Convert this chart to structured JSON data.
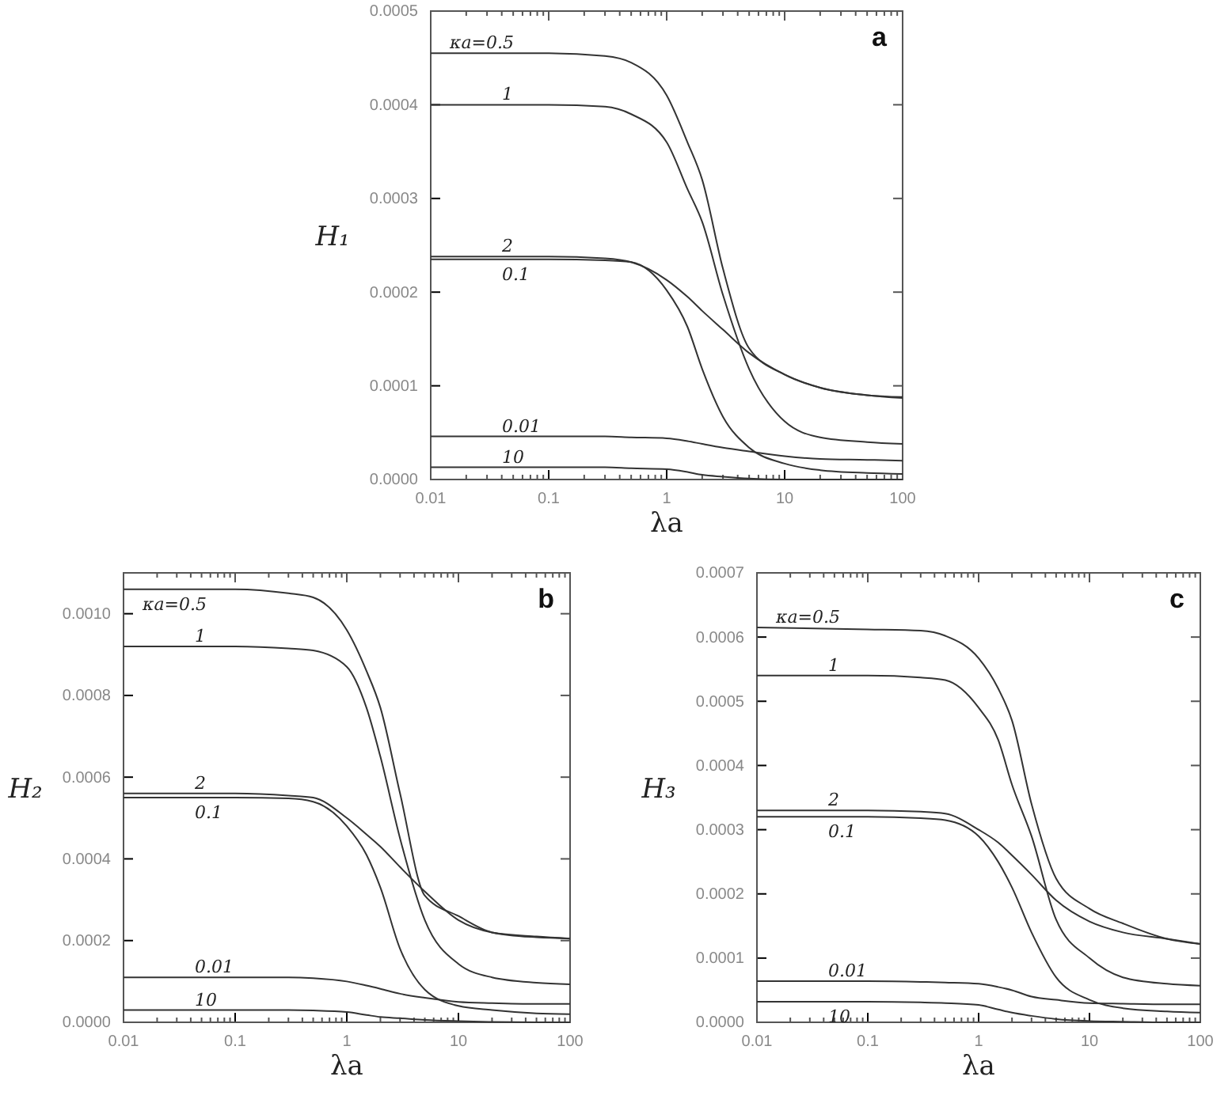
{
  "chart_data": [
    {
      "type": "line",
      "title": "a",
      "xlabel": "λa",
      "ylabel": "H₁",
      "log": "x",
      "xlim": [
        0.01,
        100
      ],
      "xticks": [
        0.01,
        0.1,
        1,
        10,
        100
      ],
      "ylim": [
        0,
        0.0005
      ],
      "yticks": [
        {
          "value": 0,
          "label": "0.0000"
        },
        {
          "value": 0.0001,
          "label": "0.0001"
        },
        {
          "value": 0.0002,
          "label": "0.0002"
        },
        {
          "value": 0.0003,
          "label": "0.0003"
        },
        {
          "value": 0.0004,
          "label": "0.0004"
        },
        {
          "value": 0.0005,
          "label": "0.0005"
        }
      ],
      "x": [
        0.01,
        0.1,
        0.3,
        0.5,
        1,
        1.5,
        2,
        3,
        5,
        10,
        20,
        50,
        100
      ],
      "series": [
        {
          "name": "κa=0.5",
          "color": "#333333",
          "values": [
            0.000455,
            0.000455,
            0.000452,
            0.000445,
            0.00041,
            0.00036,
            0.00032,
            0.000225,
            0.00014,
            0.000112,
            9.8e-05,
            9e-05,
            8.8e-05
          ]
        },
        {
          "name": "1",
          "color": "#333333",
          "values": [
            0.0004,
            0.0004,
            0.000398,
            0.00039,
            0.00036,
            0.00031,
            0.000275,
            0.000197,
            0.000118,
            6.2e-05,
            4.5e-05,
            4e-05,
            3.8e-05
          ]
        },
        {
          "name": "2",
          "color": "#333333",
          "values": [
            0.000238,
            0.000238,
            0.000236,
            0.000232,
            0.000213,
            0.000195,
            0.00018,
            0.00016,
            0.000135,
            0.000112,
            9.8e-05,
            9e-05,
            8.7e-05
          ]
        },
        {
          "name": "0.1",
          "color": "#333333",
          "values": [
            0.000235,
            0.000235,
            0.000234,
            0.000232,
            0.000202,
            0.000163,
            0.000118,
            6.7e-05,
            3.4e-05,
            1.7e-05,
            1e-05,
            7e-06,
            6e-06
          ]
        },
        {
          "name": "0.01",
          "color": "#333333",
          "values": [
            4.6e-05,
            4.6e-05,
            4.6e-05,
            4.5e-05,
            4.4e-05,
            4.1e-05,
            3.8e-05,
            3.4e-05,
            3e-05,
            2.5e-05,
            2.2e-05,
            2.1e-05,
            2e-05
          ]
        },
        {
          "name": "10",
          "color": "#333333",
          "values": [
            1.3e-05,
            1.3e-05,
            1.3e-05,
            1.2e-05,
            1.1e-05,
            8e-06,
            5e-06,
            3e-06,
            1e-06,
            0,
            0,
            0,
            0
          ]
        }
      ]
    },
    {
      "type": "line",
      "title": "b",
      "xlabel": "λa",
      "ylabel": "H₂",
      "log": "x",
      "xlim": [
        0.01,
        100
      ],
      "xticks": [
        0.01,
        0.1,
        1,
        10,
        100
      ],
      "ylim": [
        0,
        0.0011
      ],
      "yticks": [
        {
          "value": 0,
          "label": "0.0000"
        },
        {
          "value": 0.0002,
          "label": "0.0002"
        },
        {
          "value": 0.0004,
          "label": "0.0004"
        },
        {
          "value": 0.0006,
          "label": "0.0006"
        },
        {
          "value": 0.0008,
          "label": "0.0008"
        },
        {
          "value": 0.001,
          "label": "0.0010"
        }
      ],
      "x": [
        0.01,
        0.1,
        0.3,
        0.5,
        1,
        1.5,
        2,
        3,
        5,
        10,
        20,
        50,
        100
      ],
      "series": [
        {
          "name": "κa=0.5",
          "color": "#333333",
          "values": [
            0.00106,
            0.00106,
            0.00105,
            0.00104,
            0.00096,
            0.00086,
            0.00077,
            0.00056,
            0.00031,
            0.00026,
            0.00022,
            0.000208,
            0.000205
          ]
        },
        {
          "name": "1",
          "color": "#333333",
          "values": [
            0.00092,
            0.00092,
            0.000915,
            0.00091,
            0.00087,
            0.00077,
            0.00065,
            0.00045,
            0.00025,
            0.000143,
            0.00011,
            9.7e-05,
            9.3e-05
          ]
        },
        {
          "name": "2",
          "color": "#333333",
          "values": [
            0.00056,
            0.00056,
            0.000555,
            0.00055,
            0.0005,
            0.00046,
            0.00043,
            0.00038,
            0.00032,
            0.00025,
            0.00022,
            0.00021,
            0.000205
          ]
        },
        {
          "name": "0.1",
          "color": "#333333",
          "values": [
            0.00055,
            0.00055,
            0.000548,
            0.00054,
            0.00048,
            0.00041,
            0.00033,
            0.00018,
            8e-05,
            4e-05,
            3e-05,
            2.2e-05,
            2e-05
          ]
        },
        {
          "name": "0.01",
          "color": "#333333",
          "values": [
            0.00011,
            0.00011,
            0.00011,
            0.000108,
            0.0001,
            9e-05,
            8.2e-05,
            7e-05,
            6e-05,
            5e-05,
            4.7e-05,
            4.5e-05,
            4.5e-05
          ]
        },
        {
          "name": "10",
          "color": "#333333",
          "values": [
            3e-05,
            3e-05,
            3e-05,
            2.9e-05,
            2.5e-05,
            1.8e-05,
            1.3e-05,
            1e-05,
            6e-06,
            3e-06,
            1e-06,
            0,
            0
          ]
        }
      ]
    },
    {
      "type": "line",
      "title": "c",
      "xlabel": "λa",
      "ylabel": "H₃",
      "log": "x",
      "xlim": [
        0.01,
        100
      ],
      "xticks": [
        0.01,
        0.1,
        1,
        10,
        100
      ],
      "ylim": [
        0,
        0.0007
      ],
      "yticks": [
        {
          "value": 0,
          "label": "0.0000"
        },
        {
          "value": 0.0001,
          "label": "0.0001"
        },
        {
          "value": 0.0002,
          "label": "0.0002"
        },
        {
          "value": 0.0003,
          "label": "0.0003"
        },
        {
          "value": 0.0004,
          "label": "0.0004"
        },
        {
          "value": 0.0005,
          "label": "0.0005"
        },
        {
          "value": 0.0006,
          "label": "0.0006"
        },
        {
          "value": 0.0007,
          "label": "0.0007"
        }
      ],
      "x": [
        0.01,
        0.1,
        0.3,
        0.5,
        1,
        1.5,
        2,
        3,
        5,
        10,
        20,
        50,
        100
      ],
      "series": [
        {
          "name": "κa=0.5",
          "color": "#333333",
          "values": [
            0.000615,
            0.000612,
            0.00061,
            0.000602,
            0.000567,
            0.00052,
            0.00047,
            0.00034,
            0.000224,
            0.000177,
            0.000154,
            0.00013,
            0.000122
          ]
        },
        {
          "name": "1",
          "color": "#333333",
          "values": [
            0.00054,
            0.00054,
            0.000537,
            0.000533,
            0.00049,
            0.00044,
            0.00037,
            0.00029,
            0.00016,
            0.0001,
            7e-05,
            6e-05,
            5.7e-05
          ]
        },
        {
          "name": "2",
          "color": "#333333",
          "values": [
            0.00033,
            0.00033,
            0.000328,
            0.000325,
            0.0003,
            0.00028,
            0.00026,
            0.00023,
            0.00019,
            0.000157,
            0.00014,
            0.00013,
            0.000122
          ]
        },
        {
          "name": "0.1",
          "color": "#333333",
          "values": [
            0.00032,
            0.00032,
            0.000318,
            0.000315,
            0.00029,
            0.00025,
            0.00021,
            0.00014,
            7e-05,
            3.5e-05,
            2.2e-05,
            1.7e-05,
            1.5e-05
          ]
        },
        {
          "name": "0.01",
          "color": "#333333",
          "values": [
            6.4e-05,
            6.4e-05,
            6.3e-05,
            6.2e-05,
            6e-05,
            5.5e-05,
            5e-05,
            4e-05,
            3.5e-05,
            3e-05,
            2.9e-05,
            2.8e-05,
            2.8e-05
          ]
        },
        {
          "name": "10",
          "color": "#333333",
          "values": [
            3.2e-05,
            3.2e-05,
            3.1e-05,
            3e-05,
            2.7e-05,
            2e-05,
            1.5e-05,
            1e-05,
            5e-06,
            2e-06,
            1e-06,
            0,
            0
          ]
        }
      ]
    }
  ]
}
